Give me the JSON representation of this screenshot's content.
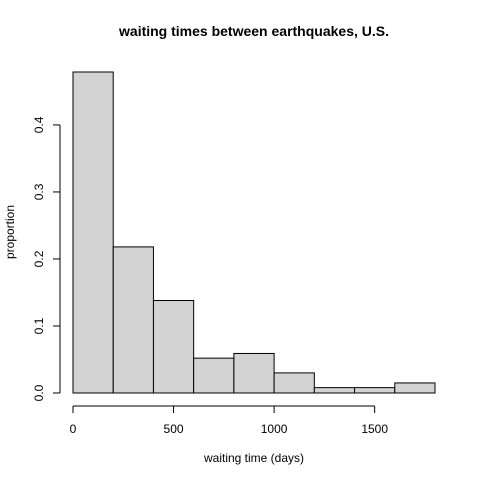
{
  "chart_data": {
    "type": "bar",
    "title": "waiting times between earthquakes, U.S.",
    "xlabel": "waiting time (days)",
    "ylabel": "proportion",
    "bin_edges": [
      0,
      200,
      400,
      600,
      800,
      1000,
      1200,
      1400,
      1600,
      1800
    ],
    "values": [
      0.479,
      0.218,
      0.138,
      0.052,
      0.059,
      0.03,
      0.008,
      0.008,
      0.015
    ],
    "xlim": [
      0,
      1800
    ],
    "ylim": [
      0,
      0.479
    ],
    "xticks": [
      0,
      500,
      1000,
      1500
    ],
    "xtick_labels": [
      "0",
      "500",
      "1000",
      "1500"
    ],
    "yticks": [
      0.0,
      0.1,
      0.2,
      0.3,
      0.4
    ],
    "ytick_labels": [
      "0.0",
      "0.1",
      "0.2",
      "0.3",
      "0.4"
    ],
    "grid": false,
    "legend": "none",
    "colors": {
      "bar_fill": "#d3d3d3",
      "bar_stroke": "#000000"
    }
  }
}
